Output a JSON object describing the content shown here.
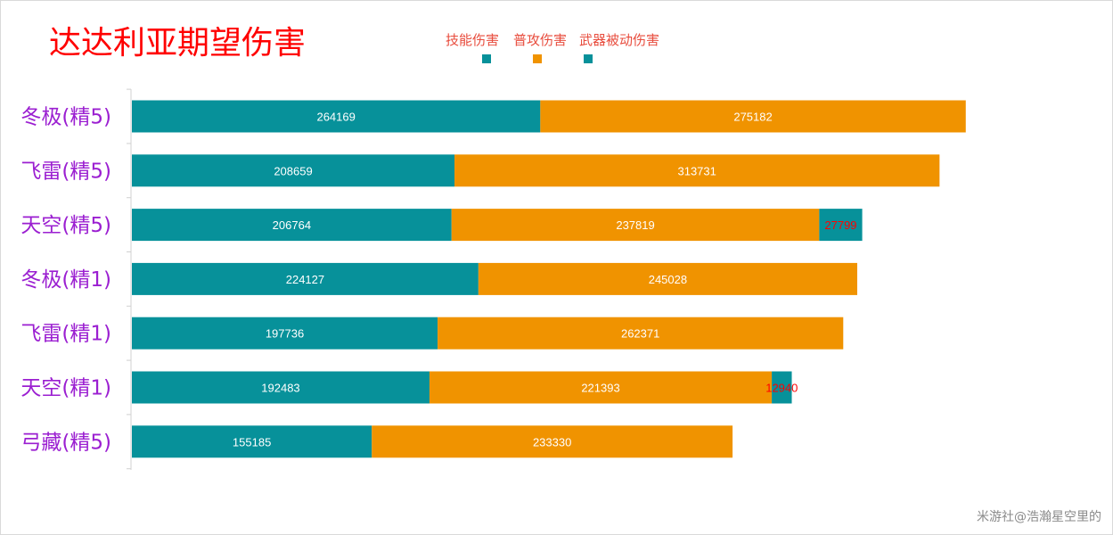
{
  "chart_data": {
    "type": "bar",
    "orientation": "horizontal",
    "stacked": true,
    "title": "达达利亚期望伤害",
    "categories": [
      "冬极(精5)",
      "飞雷(精5)",
      "天空(精5)",
      "冬极(精1)",
      "飞雷(精1)",
      "天空(精1)",
      "弓藏(精5)"
    ],
    "series": [
      {
        "name": "技能伤害",
        "color": "#07919a",
        "values": [
          264169,
          208659,
          206764,
          224127,
          197736,
          192483,
          155185
        ]
      },
      {
        "name": "普攻伤害",
        "color": "#f09300",
        "values": [
          275182,
          313731,
          237819,
          245028,
          262371,
          221393,
          233330
        ]
      },
      {
        "name": "武器被动伤害",
        "color": "#07919a",
        "values": [
          null,
          null,
          27799,
          null,
          null,
          12940,
          null
        ]
      }
    ],
    "data_label_colors": [
      "#ffffff",
      "#ffffff",
      "#ff0000"
    ],
    "legend_position": "top",
    "xlim": [
      0,
      600000
    ],
    "grid": false
  },
  "watermark": "米游社@浩瀚星空里的"
}
